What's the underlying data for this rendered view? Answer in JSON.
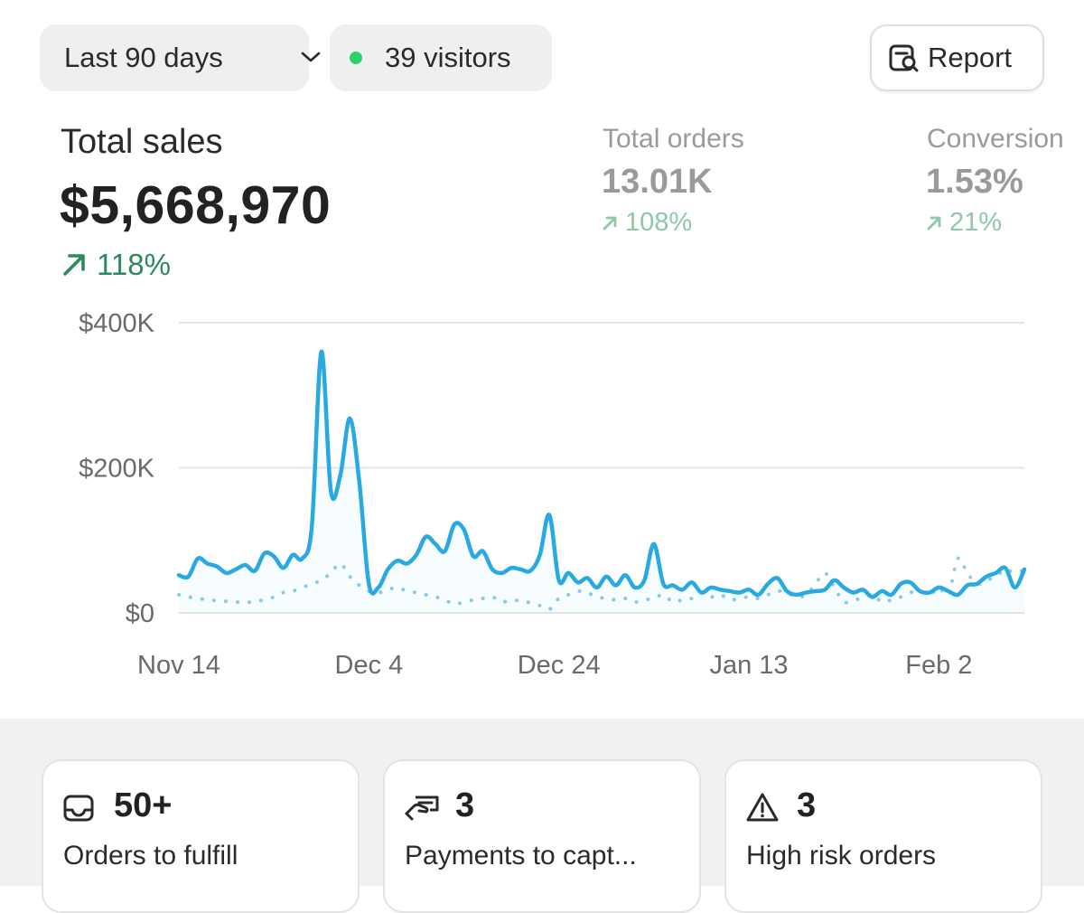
{
  "toolbar": {
    "date_range_label": "Last 90 days",
    "visitors_label": "39 visitors",
    "report_label": "Report"
  },
  "metrics": {
    "total_sales": {
      "label": "Total sales",
      "value": "$5,668,970",
      "change": "118%"
    },
    "total_orders": {
      "label": "Total orders",
      "value": "13.01K",
      "change": "108%"
    },
    "conversion": {
      "label": "Conversion",
      "value": "1.53%",
      "change": "21%"
    }
  },
  "colors": {
    "accent_blue": "#29a9e1",
    "positive_green": "#2a8a5c",
    "faded_green": "#8fc8a8",
    "live_dot": "#2ad46b"
  },
  "chart_data": {
    "type": "line",
    "y_ticks": [
      "$400K",
      "$200K",
      "$0"
    ],
    "x_ticks": [
      "Nov 14",
      "Dec 4",
      "Dec 24",
      "Jan 13",
      "Feb 2"
    ],
    "ylim": [
      0,
      400000
    ],
    "grid": true,
    "x_days": 90,
    "series": [
      {
        "style": "solid",
        "color": "#29a9e1",
        "values": [
          52000,
          50000,
          75000,
          68000,
          64000,
          55000,
          60000,
          66000,
          58000,
          82000,
          78000,
          62000,
          80000,
          75000,
          120000,
          360000,
          168000,
          190000,
          268000,
          180000,
          40000,
          35000,
          60000,
          72000,
          68000,
          80000,
          105000,
          95000,
          85000,
          122000,
          115000,
          78000,
          85000,
          60000,
          55000,
          62000,
          60000,
          58000,
          80000,
          135000,
          45000,
          55000,
          42000,
          48000,
          35000,
          50000,
          38000,
          52000,
          35000,
          45000,
          95000,
          40000,
          38000,
          32000,
          42000,
          28000,
          35000,
          32000,
          30000,
          28000,
          32000,
          25000,
          40000,
          48000,
          30000,
          25000,
          28000,
          30000,
          32000,
          45000,
          35000,
          28000,
          32000,
          22000,
          30000,
          25000,
          40000,
          42000,
          30000,
          28000,
          35000,
          30000,
          25000,
          38000,
          40000,
          50000,
          55000,
          62000,
          35000,
          60000
        ]
      },
      {
        "style": "dotted",
        "color": "#8ccbe6",
        "values": [
          25000,
          22000,
          20000,
          18000,
          17000,
          16000,
          15000,
          14000,
          16000,
          18000,
          22000,
          28000,
          30000,
          35000,
          40000,
          45000,
          55000,
          68000,
          50000,
          38000,
          30000,
          28000,
          32000,
          35000,
          30000,
          28000,
          25000,
          22000,
          18000,
          12000,
          15000,
          18000,
          20000,
          22000,
          15000,
          18000,
          16000,
          14000,
          10000,
          5000,
          20000,
          25000,
          30000,
          28000,
          22000,
          20000,
          18000,
          20000,
          15000,
          18000,
          20000,
          25000,
          15000,
          18000,
          20000,
          28000,
          22000,
          25000,
          18000,
          20000,
          22000,
          20000,
          25000,
          30000,
          28000,
          22000,
          25000,
          40000,
          55000,
          35000,
          15000,
          18000,
          20000,
          25000,
          15000,
          18000,
          22000,
          28000,
          30000,
          25000,
          35000,
          25000,
          75000,
          55000,
          40000,
          45000,
          50000,
          60000,
          55000,
          60000
        ]
      }
    ]
  },
  "cards": [
    {
      "icon": "inbox-icon",
      "count": "50+",
      "label": "Orders to fulfill"
    },
    {
      "icon": "hand-payment-icon",
      "count": "3",
      "label": "Payments to capt..."
    },
    {
      "icon": "warning-icon",
      "count": "3",
      "label": "High risk orders"
    }
  ]
}
